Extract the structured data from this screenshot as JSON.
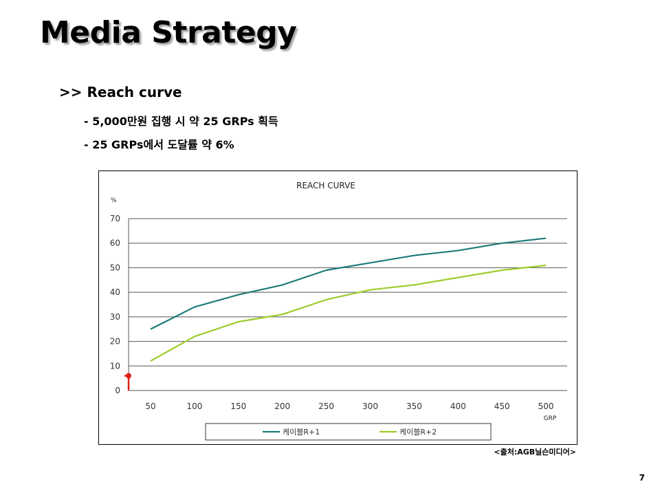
{
  "slide": {
    "title": "Media Strategy",
    "heading": ">> Reach curve",
    "bullets": [
      "- 5,000만원 집행 시 약 25 GRPs 획득",
      "- 25 GRPs에서 도달률 약 6%"
    ],
    "source": "<출처:AGB닐슨미디어>",
    "page_number": "7"
  },
  "colors": {
    "series1": "#1e7b7b",
    "series2": "#9ccb2a",
    "marker": "#e0201a",
    "grid": "#555555"
  },
  "chart_data": {
    "type": "line",
    "title": "REACH CURVE",
    "ylabel": "%",
    "xlabel": "GRP",
    "x": [
      50,
      100,
      150,
      200,
      250,
      300,
      350,
      400,
      450,
      500
    ],
    "ylim": [
      0,
      70
    ],
    "yticks": [
      0,
      10,
      20,
      30,
      40,
      50,
      60,
      70
    ],
    "grid": true,
    "legend": "bottom",
    "series": [
      {
        "name": "케이블R+1",
        "values": [
          25,
          34,
          39,
          43,
          49,
          52,
          55,
          57,
          60,
          62
        ]
      },
      {
        "name": "케이블R+2",
        "values": [
          12,
          22,
          28,
          31,
          37,
          41,
          43,
          46,
          49,
          51
        ]
      }
    ],
    "annotation": {
      "x": 25,
      "y": 6
    }
  }
}
